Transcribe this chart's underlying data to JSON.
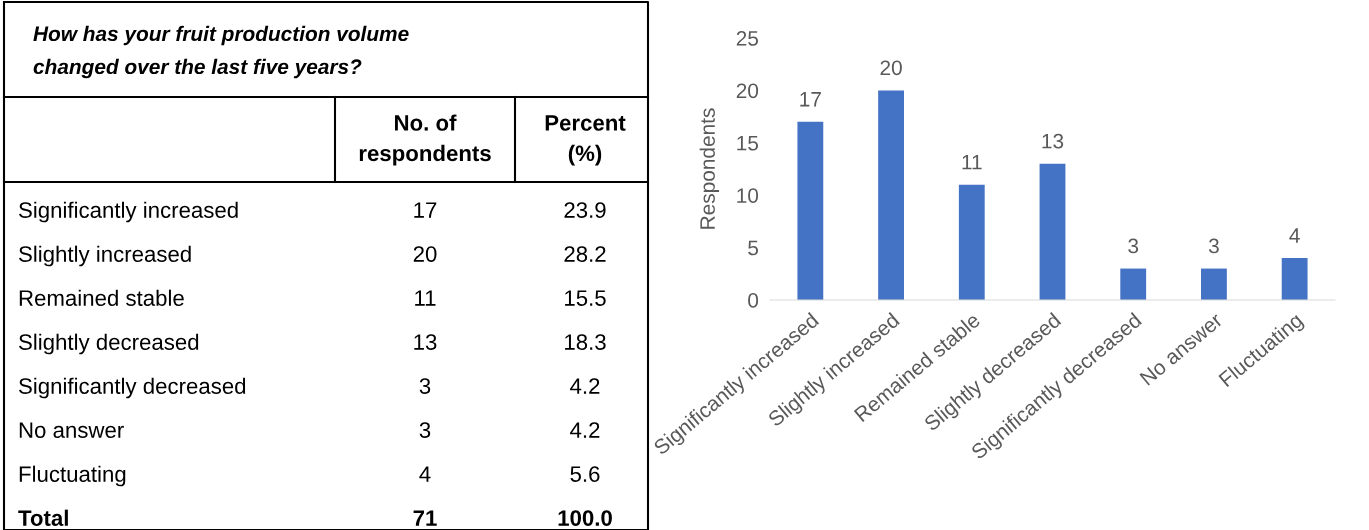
{
  "chart_data": [
    {
      "type": "other",
      "title": "How has your fruit production volume\nchanged over the last five years?",
      "categories": [
        "Significantly increased",
        "Slightly increased",
        "Remained stable",
        "Slightly decreased",
        "Significantly decreased",
        "No answer",
        "Fluctuating"
      ],
      "series": [
        {
          "name": "No. of\nrespondents",
          "values": [
            17,
            20,
            11,
            13,
            3,
            3,
            4
          ]
        },
        {
          "name": "Percent\n(%)",
          "values": [
            23.9,
            28.2,
            15.5,
            18.3,
            4.2,
            4.2,
            5.6
          ]
        }
      ],
      "data_labels": true,
      "annotations": [
        "Total",
        "71",
        "100.0"
      ]
    },
    {
      "type": "bar",
      "ylabel": "Respondents",
      "categories": [
        "Significantly increased",
        "Slightly increased",
        "Remained stable",
        "Slightly decreased",
        "Significantly decreased",
        "No answer",
        "Fluctuating"
      ],
      "values": [
        17,
        20,
        11,
        13,
        3,
        3,
        4
      ],
      "color": "#4472c4",
      "ylim": [
        0,
        25
      ],
      "yticks": [
        0,
        5,
        10,
        15,
        20,
        25
      ],
      "grid": false,
      "data_labels": true
    }
  ]
}
